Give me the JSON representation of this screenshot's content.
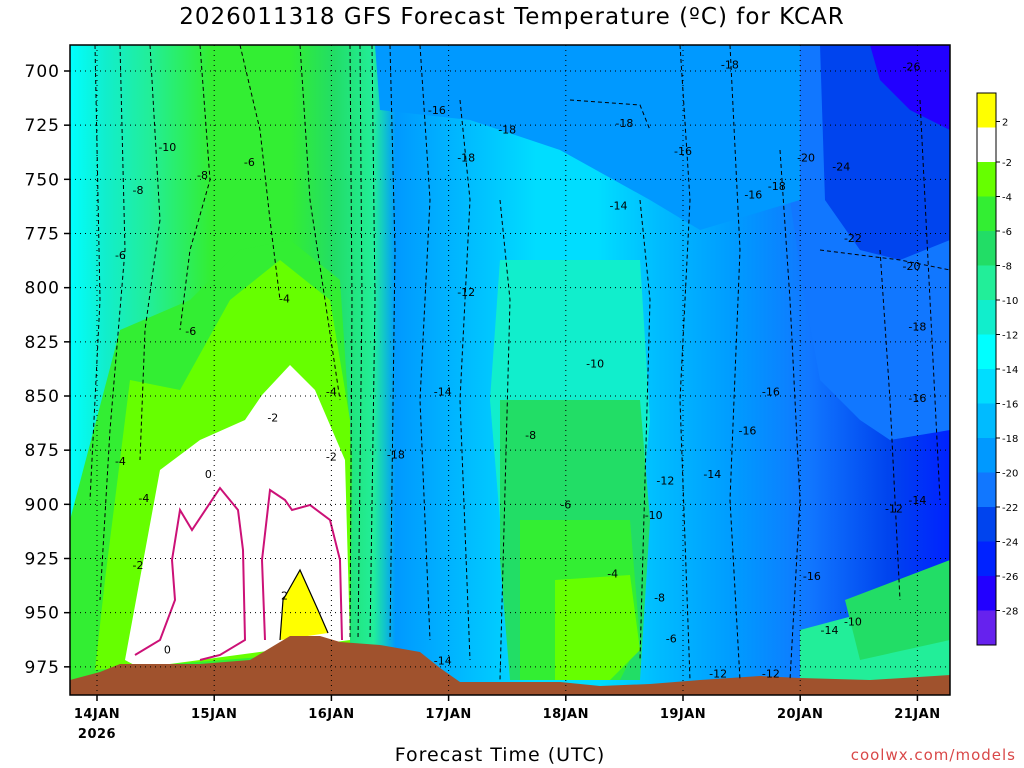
{
  "title": "2026011318 GFS Forecast Temperature (ºC) for KCAR",
  "xlabel": "Forecast Time (UTC)",
  "credit": "coolwx.com/models",
  "chart_data": {
    "type": "heatmap",
    "title": "2026011318 GFS Forecast Temperature (ºC) for KCAR",
    "xlabel": "Forecast Time (UTC)",
    "ylabel": "",
    "y_ticks": [
      700,
      725,
      750,
      775,
      800,
      825,
      850,
      875,
      900,
      925,
      950,
      975
    ],
    "ylim": [
      988,
      688
    ],
    "x_ticks": [
      "14JAN",
      "15JAN",
      "16JAN",
      "17JAN",
      "18JAN",
      "19JAN",
      "20JAN",
      "21JAN"
    ],
    "x_year_label": "2026",
    "colorbar_ticks": [
      2,
      -2,
      -4,
      -6,
      -8,
      -10,
      -12,
      -14,
      -16,
      -18,
      -20,
      -22,
      -24,
      -26,
      -28
    ],
    "colorbar_colors": [
      "#ffff00",
      "#ffffff",
      "#66ff00",
      "#33ee33",
      "#22dd66",
      "#22ee99",
      "#11eecc",
      "#00ffff",
      "#00ddff",
      "#00bbff",
      "#0099ff",
      "#1177ff",
      "#0044ee",
      "#0022ff",
      "#2200ff",
      "#6622ee"
    ],
    "contour_labels": [
      {
        "text": "-8",
        "x_day": 0.35,
        "p": 755
      },
      {
        "text": "-10",
        "x_day": 0.6,
        "p": 735
      },
      {
        "text": "-8",
        "x_day": 0.9,
        "p": 748
      },
      {
        "text": "-6",
        "x_day": 1.3,
        "p": 742
      },
      {
        "text": "-6",
        "x_day": 0.2,
        "p": 785
      },
      {
        "text": "-6",
        "x_day": 0.8,
        "p": 820
      },
      {
        "text": "-4",
        "x_day": 1.6,
        "p": 805
      },
      {
        "text": "-4",
        "x_day": 2.0,
        "p": 848
      },
      {
        "text": "-2",
        "x_day": 1.5,
        "p": 860
      },
      {
        "text": "-2",
        "x_day": 2.0,
        "p": 878
      },
      {
        "text": "-4",
        "x_day": 0.2,
        "p": 880
      },
      {
        "text": "-4",
        "x_day": 0.4,
        "p": 897
      },
      {
        "text": "-2",
        "x_day": 0.35,
        "p": 928
      },
      {
        "text": "0",
        "x_day": 0.95,
        "p": 886
      },
      {
        "text": "0",
        "x_day": 0.6,
        "p": 967
      },
      {
        "text": "2",
        "x_day": 1.6,
        "p": 942
      },
      {
        "text": "-16",
        "x_day": 2.9,
        "p": 718
      },
      {
        "text": "-18",
        "x_day": 3.15,
        "p": 740
      },
      {
        "text": "-18",
        "x_day": 3.5,
        "p": 727
      },
      {
        "text": "-18",
        "x_day": 4.5,
        "p": 724
      },
      {
        "text": "-16",
        "x_day": 5.0,
        "p": 737
      },
      {
        "text": "-14",
        "x_day": 4.45,
        "p": 762
      },
      {
        "text": "-18",
        "x_day": 5.4,
        "p": 697
      },
      {
        "text": "-16",
        "x_day": 5.6,
        "p": 757
      },
      {
        "text": "-18",
        "x_day": 5.8,
        "p": 753
      },
      {
        "text": "-20",
        "x_day": 6.05,
        "p": 740
      },
      {
        "text": "-24",
        "x_day": 6.35,
        "p": 744
      },
      {
        "text": "-26",
        "x_day": 6.95,
        "p": 698
      },
      {
        "text": "-22",
        "x_day": 6.45,
        "p": 777
      },
      {
        "text": "-20",
        "x_day": 6.95,
        "p": 790
      },
      {
        "text": "-18",
        "x_day": 7.0,
        "p": 818
      },
      {
        "text": "-16",
        "x_day": 7.0,
        "p": 851
      },
      {
        "text": "-14",
        "x_day": 7.0,
        "p": 898
      },
      {
        "text": "-12",
        "x_day": 6.8,
        "p": 902
      },
      {
        "text": "-16",
        "x_day": 6.1,
        "p": 933
      },
      {
        "text": "-14",
        "x_day": 6.25,
        "p": 958
      },
      {
        "text": "-10",
        "x_day": 6.45,
        "p": 954
      },
      {
        "text": "-16",
        "x_day": 5.75,
        "p": 848
      },
      {
        "text": "-16",
        "x_day": 5.55,
        "p": 866
      },
      {
        "text": "-14",
        "x_day": 5.25,
        "p": 886
      },
      {
        "text": "-12",
        "x_day": 3.15,
        "p": 802
      },
      {
        "text": "-10",
        "x_day": 4.25,
        "p": 835
      },
      {
        "text": "-14",
        "x_day": 2.95,
        "p": 848
      },
      {
        "text": "-18",
        "x_day": 2.55,
        "p": 877
      },
      {
        "text": "-8",
        "x_day": 3.7,
        "p": 868
      },
      {
        "text": "-6",
        "x_day": 4.0,
        "p": 900
      },
      {
        "text": "-4",
        "x_day": 4.4,
        "p": 932
      },
      {
        "text": "-12",
        "x_day": 4.85,
        "p": 889
      },
      {
        "text": "-10",
        "x_day": 4.75,
        "p": 905
      },
      {
        "text": "-8",
        "x_day": 4.8,
        "p": 943
      },
      {
        "text": "-6",
        "x_day": 4.9,
        "p": 962
      },
      {
        "text": "-14",
        "x_day": 2.95,
        "p": 972
      },
      {
        "text": "-12",
        "x_day": 5.3,
        "p": 978
      },
      {
        "text": "-12",
        "x_day": 5.75,
        "p": 978
      }
    ]
  }
}
